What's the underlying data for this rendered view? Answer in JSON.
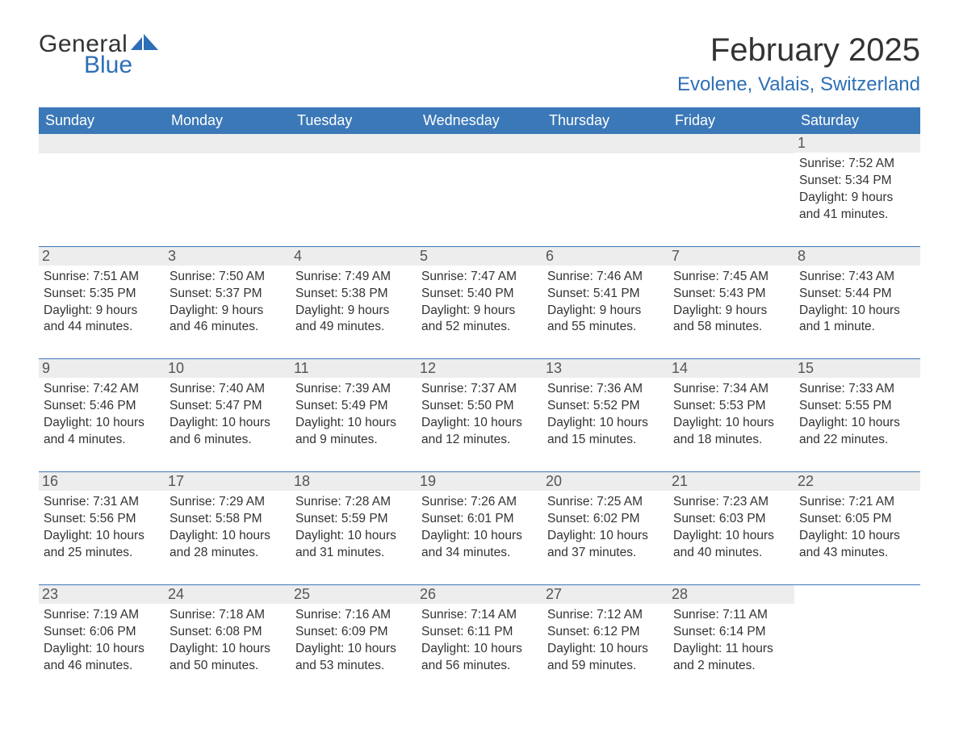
{
  "brand": {
    "word1": "General",
    "word2": "Blue",
    "logo_color": "#2d6fb6"
  },
  "header": {
    "month_title": "February 2025",
    "location": "Evolene, Valais, Switzerland"
  },
  "styling": {
    "header_bg": "#3b78b8",
    "header_text": "#ffffff",
    "daynum_bg": "#ededed",
    "daynum_text": "#555555",
    "body_text": "#333333",
    "rule_color": "#3b78b8",
    "page_bg": "#ffffff",
    "font_family": "Arial",
    "month_title_fontsize": 40,
    "location_fontsize": 24,
    "weekday_fontsize": 18,
    "body_fontsize": 15.5
  },
  "weekdays": [
    "Sunday",
    "Monday",
    "Tuesday",
    "Wednesday",
    "Thursday",
    "Friday",
    "Saturday"
  ],
  "labels": {
    "sunrise": "Sunrise:",
    "sunset": "Sunset:",
    "daylight": "Daylight:"
  },
  "weeks": [
    [
      {
        "blank": true
      },
      {
        "blank": true
      },
      {
        "blank": true
      },
      {
        "blank": true
      },
      {
        "blank": true
      },
      {
        "blank": true
      },
      {
        "n": "1",
        "sunrise": "7:52 AM",
        "sunset": "5:34 PM",
        "daylight1": "9 hours",
        "daylight2": "and 41 minutes."
      }
    ],
    [
      {
        "n": "2",
        "sunrise": "7:51 AM",
        "sunset": "5:35 PM",
        "daylight1": "9 hours",
        "daylight2": "and 44 minutes."
      },
      {
        "n": "3",
        "sunrise": "7:50 AM",
        "sunset": "5:37 PM",
        "daylight1": "9 hours",
        "daylight2": "and 46 minutes."
      },
      {
        "n": "4",
        "sunrise": "7:49 AM",
        "sunset": "5:38 PM",
        "daylight1": "9 hours",
        "daylight2": "and 49 minutes."
      },
      {
        "n": "5",
        "sunrise": "7:47 AM",
        "sunset": "5:40 PM",
        "daylight1": "9 hours",
        "daylight2": "and 52 minutes."
      },
      {
        "n": "6",
        "sunrise": "7:46 AM",
        "sunset": "5:41 PM",
        "daylight1": "9 hours",
        "daylight2": "and 55 minutes."
      },
      {
        "n": "7",
        "sunrise": "7:45 AM",
        "sunset": "5:43 PM",
        "daylight1": "9 hours",
        "daylight2": "and 58 minutes."
      },
      {
        "n": "8",
        "sunrise": "7:43 AM",
        "sunset": "5:44 PM",
        "daylight1": "10 hours",
        "daylight2": "and 1 minute."
      }
    ],
    [
      {
        "n": "9",
        "sunrise": "7:42 AM",
        "sunset": "5:46 PM",
        "daylight1": "10 hours",
        "daylight2": "and 4 minutes."
      },
      {
        "n": "10",
        "sunrise": "7:40 AM",
        "sunset": "5:47 PM",
        "daylight1": "10 hours",
        "daylight2": "and 6 minutes."
      },
      {
        "n": "11",
        "sunrise": "7:39 AM",
        "sunset": "5:49 PM",
        "daylight1": "10 hours",
        "daylight2": "and 9 minutes."
      },
      {
        "n": "12",
        "sunrise": "7:37 AM",
        "sunset": "5:50 PM",
        "daylight1": "10 hours",
        "daylight2": "and 12 minutes."
      },
      {
        "n": "13",
        "sunrise": "7:36 AM",
        "sunset": "5:52 PM",
        "daylight1": "10 hours",
        "daylight2": "and 15 minutes."
      },
      {
        "n": "14",
        "sunrise": "7:34 AM",
        "sunset": "5:53 PM",
        "daylight1": "10 hours",
        "daylight2": "and 18 minutes."
      },
      {
        "n": "15",
        "sunrise": "7:33 AM",
        "sunset": "5:55 PM",
        "daylight1": "10 hours",
        "daylight2": "and 22 minutes."
      }
    ],
    [
      {
        "n": "16",
        "sunrise": "7:31 AM",
        "sunset": "5:56 PM",
        "daylight1": "10 hours",
        "daylight2": "and 25 minutes."
      },
      {
        "n": "17",
        "sunrise": "7:29 AM",
        "sunset": "5:58 PM",
        "daylight1": "10 hours",
        "daylight2": "and 28 minutes."
      },
      {
        "n": "18",
        "sunrise": "7:28 AM",
        "sunset": "5:59 PM",
        "daylight1": "10 hours",
        "daylight2": "and 31 minutes."
      },
      {
        "n": "19",
        "sunrise": "7:26 AM",
        "sunset": "6:01 PM",
        "daylight1": "10 hours",
        "daylight2": "and 34 minutes."
      },
      {
        "n": "20",
        "sunrise": "7:25 AM",
        "sunset": "6:02 PM",
        "daylight1": "10 hours",
        "daylight2": "and 37 minutes."
      },
      {
        "n": "21",
        "sunrise": "7:23 AM",
        "sunset": "6:03 PM",
        "daylight1": "10 hours",
        "daylight2": "and 40 minutes."
      },
      {
        "n": "22",
        "sunrise": "7:21 AM",
        "sunset": "6:05 PM",
        "daylight1": "10 hours",
        "daylight2": "and 43 minutes."
      }
    ],
    [
      {
        "n": "23",
        "sunrise": "7:19 AM",
        "sunset": "6:06 PM",
        "daylight1": "10 hours",
        "daylight2": "and 46 minutes."
      },
      {
        "n": "24",
        "sunrise": "7:18 AM",
        "sunset": "6:08 PM",
        "daylight1": "10 hours",
        "daylight2": "and 50 minutes."
      },
      {
        "n": "25",
        "sunrise": "7:16 AM",
        "sunset": "6:09 PM",
        "daylight1": "10 hours",
        "daylight2": "and 53 minutes."
      },
      {
        "n": "26",
        "sunrise": "7:14 AM",
        "sunset": "6:11 PM",
        "daylight1": "10 hours",
        "daylight2": "and 56 minutes."
      },
      {
        "n": "27",
        "sunrise": "7:12 AM",
        "sunset": "6:12 PM",
        "daylight1": "10 hours",
        "daylight2": "and 59 minutes."
      },
      {
        "n": "28",
        "sunrise": "7:11 AM",
        "sunset": "6:14 PM",
        "daylight1": "11 hours",
        "daylight2": "and 2 minutes."
      },
      {
        "blank": true,
        "noBar": true
      }
    ]
  ]
}
